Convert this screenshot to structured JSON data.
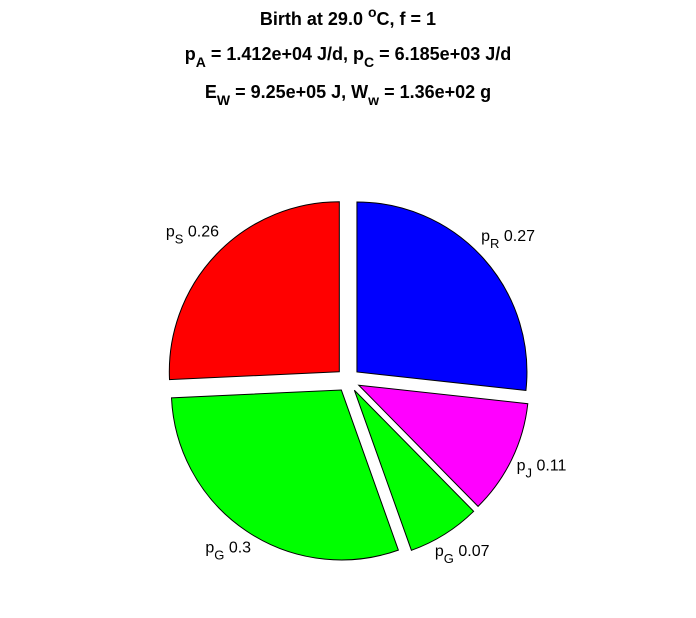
{
  "chart_data": {
    "type": "pie",
    "title": [
      [
        {
          "text": "Birth at 29.0 "
        },
        {
          "text": "o",
          "shift": "sup"
        },
        {
          "text": "C, f = 1"
        }
      ],
      [
        {
          "text": "p"
        },
        {
          "text": "A",
          "shift": "sub"
        },
        {
          "text": " = 1.412e+04 J/d, p"
        },
        {
          "text": "C",
          "shift": "sub"
        },
        {
          "text": " = 6.185e+03 J/d"
        }
      ],
      [
        {
          "text": "E"
        },
        {
          "text": "W",
          "shift": "sub"
        },
        {
          "text": " = 9.25e+05 J, W"
        },
        {
          "text": "w",
          "shift": "sub"
        },
        {
          "text": " = 1.36e+02 g"
        }
      ]
    ],
    "explode": true,
    "slices": [
      {
        "name": "p",
        "sub": "R",
        "value": 0.27,
        "color": "#0000ff"
      },
      {
        "name": "p",
        "sub": "J",
        "value": 0.11,
        "color": "#ff00ff"
      },
      {
        "name": "p",
        "sub": "G",
        "value": 0.07,
        "color": "#00ff00"
      },
      {
        "name": "p",
        "sub": "G",
        "value": 0.3,
        "color": "#00ff00"
      },
      {
        "name": "p",
        "sub": "S",
        "value": 0.26,
        "color": "#ff0000"
      }
    ]
  }
}
